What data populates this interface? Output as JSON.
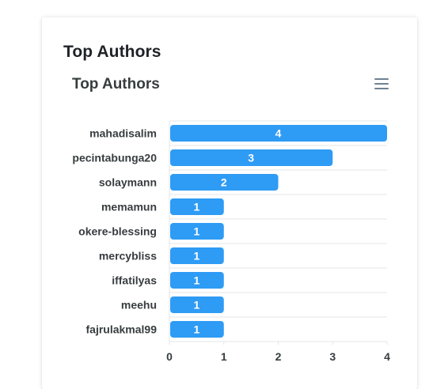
{
  "card": {
    "title": "Top Authors"
  },
  "menu_icon": "hamburger-menu-icon",
  "colors": {
    "bar": "#2e9bf5",
    "grid": "#e3e5e8",
    "axis_text": "#373d3f",
    "title": "#1f2328",
    "menu": "#6e8192"
  },
  "chart_data": {
    "type": "bar",
    "orientation": "horizontal",
    "title": "Top Authors",
    "categories": [
      "mahadisalim",
      "pecintabunga20",
      "solaymann",
      "memamun",
      "okere-blessing",
      "mercybliss",
      "iffatilyas",
      "meehu",
      "fajrulakmal99"
    ],
    "values": [
      4,
      3,
      2,
      1,
      1,
      1,
      1,
      1,
      1
    ],
    "xlim": [
      0,
      4
    ],
    "xticks": [
      "0",
      "1",
      "2",
      "3",
      "4"
    ],
    "data_labels": true,
    "grid": true
  }
}
